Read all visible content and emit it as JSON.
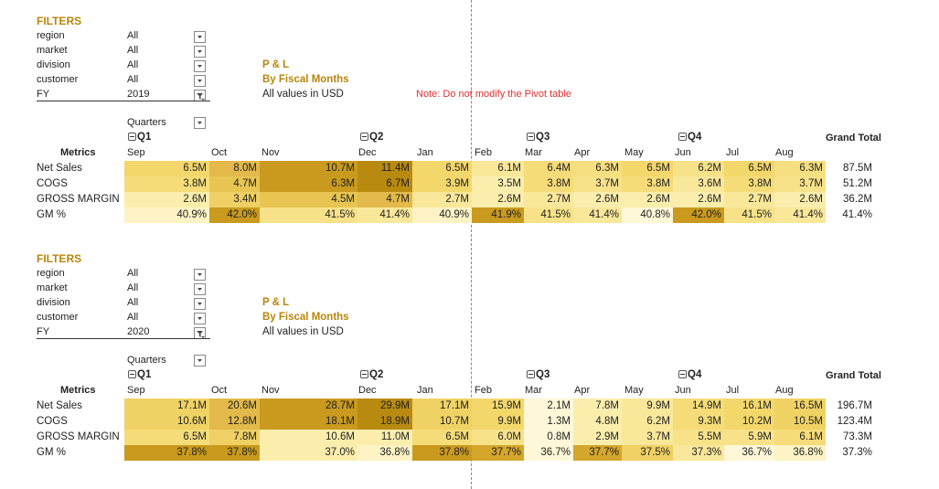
{
  "note": "Note: Do not modify the Pivot table",
  "months": [
    "Sep",
    "Oct",
    "Nov",
    "Dec",
    "Jan",
    "Feb",
    "Mar",
    "Apr",
    "May",
    "Jun",
    "Jul",
    "Aug"
  ],
  "quarters": [
    "Q1",
    "Q2",
    "Q3",
    "Q4"
  ],
  "quarters_label": "Quarters",
  "metrics_header": "Metrics",
  "grand_total_header": "Grand Total",
  "metric_rows": [
    "Net Sales",
    "COGS",
    "GROSS MARGIN",
    "GM %"
  ],
  "pl_title": "P & L",
  "pl_subtitle": "By Fiscal Months",
  "pl_units": "All values in USD",
  "pivots": [
    {
      "filters_title": "FILTERS",
      "filters": [
        {
          "label": "region",
          "value": "All"
        },
        {
          "label": "market",
          "value": "All"
        },
        {
          "label": "division",
          "value": "All"
        },
        {
          "label": "customer",
          "value": "All"
        },
        {
          "label": "FY",
          "value": "2019"
        }
      ],
      "rows": [
        {
          "values": [
            "6.5M",
            "8.0M",
            "10.7M",
            "11.4M",
            "6.5M",
            "6.1M",
            "6.4M",
            "6.3M",
            "6.5M",
            "6.2M",
            "6.5M",
            "6.3M"
          ],
          "total": "87.5M",
          "colors": [
            "#f3d76a",
            "#e2b94a",
            "#c99a1e",
            "#b88a10",
            "#f3d76a",
            "#f9e79a",
            "#f5dc78",
            "#f6df80",
            "#f3d76a",
            "#f7e28a",
            "#f3d76a",
            "#f6df80"
          ]
        },
        {
          "values": [
            "3.8M",
            "4.7M",
            "6.3M",
            "6.7M",
            "3.9M",
            "3.5M",
            "3.8M",
            "3.7M",
            "3.8M",
            "3.6M",
            "3.8M",
            "3.7M"
          ],
          "total": "51.2M",
          "colors": [
            "#f5dc78",
            "#e8c552",
            "#c99a1e",
            "#b88a10",
            "#f3d76a",
            "#fbeead",
            "#f5dc78",
            "#f7e28a",
            "#f5dc78",
            "#f9e79a",
            "#f5dc78",
            "#f7e28a"
          ]
        },
        {
          "values": [
            "2.6M",
            "3.4M",
            "4.5M",
            "4.7M",
            "2.7M",
            "2.6M",
            "2.7M",
            "2.6M",
            "2.6M",
            "2.6M",
            "2.7M",
            "2.6M"
          ],
          "total": "36.2M",
          "colors": [
            "#fbeead",
            "#efd064",
            "#e8c552",
            "#e2b94a",
            "#f9e79a",
            "#fbeead",
            "#f9e79a",
            "#fbeead",
            "#fbeead",
            "#fbeead",
            "#f9e79a",
            "#fbeead"
          ]
        },
        {
          "values": [
            "40.9%",
            "42.0%",
            "41.5%",
            "41.4%",
            "40.9%",
            "41.9%",
            "41.5%",
            "41.4%",
            "40.8%",
            "42.0%",
            "41.5%",
            "41.4%"
          ],
          "total": "41.4%",
          "colors": [
            "#fdf3c4",
            "#c99a1e",
            "#f7e28a",
            "#f9e79a",
            "#fdf3c4",
            "#c99a1e",
            "#f7e28a",
            "#f9e79a",
            "#fef7d8",
            "#c99a1e",
            "#f7e28a",
            "#f9e79a"
          ]
        }
      ]
    },
    {
      "filters_title": "FILTERS",
      "filters": [
        {
          "label": "region",
          "value": "All"
        },
        {
          "label": "market",
          "value": "All"
        },
        {
          "label": "division",
          "value": "All"
        },
        {
          "label": "customer",
          "value": "All"
        },
        {
          "label": "FY",
          "value": "2020"
        }
      ],
      "rows": [
        {
          "values": [
            "17.1M",
            "20.6M",
            "28.7M",
            "29.9M",
            "17.1M",
            "15.9M",
            "2.1M",
            "7.8M",
            "9.9M",
            "14.9M",
            "16.1M",
            "16.5M"
          ],
          "total": "196.7M",
          "colors": [
            "#f0d264",
            "#e2b94a",
            "#c99a1e",
            "#b88a10",
            "#f0d264",
            "#f3d76a",
            "#fef7d8",
            "#fbeead",
            "#f9e79a",
            "#f5dc78",
            "#f3d76a",
            "#f0d264"
          ]
        },
        {
          "values": [
            "10.6M",
            "12.8M",
            "18.1M",
            "18.9M",
            "10.7M",
            "9.9M",
            "1.3M",
            "4.8M",
            "6.2M",
            "9.3M",
            "10.2M",
            "10.5M"
          ],
          "total": "123.4M",
          "colors": [
            "#f0d264",
            "#e2b94a",
            "#c99a1e",
            "#b88a10",
            "#f0d264",
            "#f3d76a",
            "#fef7d8",
            "#fbeead",
            "#f9e79a",
            "#f5dc78",
            "#f3d76a",
            "#f0d264"
          ]
        },
        {
          "values": [
            "6.5M",
            "7.8M",
            "10.6M",
            "11.0M",
            "6.5M",
            "6.0M",
            "0.8M",
            "2.9M",
            "3.7M",
            "5.5M",
            "5.9M",
            "6.1M"
          ],
          "total": "73.3M",
          "colors": [
            "#f5dc78",
            "#efd064",
            "#fbeead",
            "#fbeead",
            "#f5dc78",
            "#f7e28a",
            "#fef7d8",
            "#fbeead",
            "#f9e79a",
            "#f7e28a",
            "#f7e28a",
            "#f5dc78"
          ]
        },
        {
          "values": [
            "37.8%",
            "37.8%",
            "37.0%",
            "36.8%",
            "37.8%",
            "37.7%",
            "36.7%",
            "37.7%",
            "37.5%",
            "37.3%",
            "36.7%",
            "36.8%"
          ],
          "total": "37.3%",
          "colors": [
            "#c99a1e",
            "#c99a1e",
            "#fbeead",
            "#fdf3c4",
            "#c99a1e",
            "#d4a62c",
            "#fef7d8",
            "#d4a62c",
            "#efd064",
            "#f9e79a",
            "#fef7d8",
            "#fdf3c4"
          ]
        }
      ]
    }
  ]
}
